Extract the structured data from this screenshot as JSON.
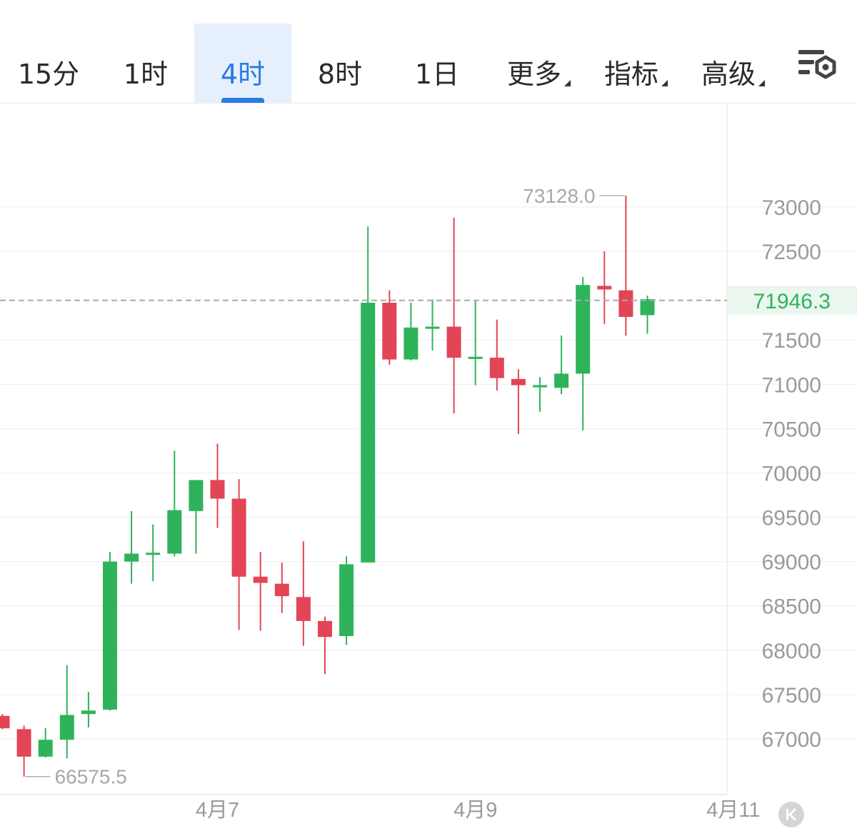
{
  "toolbar": {
    "tabs": [
      {
        "label": "15分",
        "active": false
      },
      {
        "label": "1时",
        "active": false
      },
      {
        "label": "4时",
        "active": true
      },
      {
        "label": "8时",
        "active": false
      },
      {
        "label": "1日",
        "active": false
      }
    ],
    "more_label": "更多",
    "indicators_label": "指标",
    "advanced_label": "高级",
    "settings_icon": "chart-settings-icon"
  },
  "chart_data": {
    "type": "candlestick",
    "y_ticks": [
      "73000",
      "72500",
      "71500",
      "71000",
      "70500",
      "70000",
      "69500",
      "69000",
      "68500",
      "68000",
      "67500",
      "67000"
    ],
    "y_tick_values": [
      73000,
      72500,
      71500,
      71000,
      70500,
      70000,
      69500,
      69000,
      68500,
      68000,
      67500,
      67000
    ],
    "current_price": "71946.3",
    "current_price_value": 71946.3,
    "high_label": "73128.0",
    "high_value": 73128.0,
    "low_label": "66575.5",
    "low_value": 66575.5,
    "x_labels": [
      {
        "label": "4月7",
        "index": 10
      },
      {
        "label": "4月9",
        "index": 22
      },
      {
        "label": "4月11",
        "index": 34
      }
    ],
    "colors": {
      "up": "#2eb35a",
      "down": "#e24555",
      "grid": "#eeeeee",
      "axis_text": "#9a9a9a",
      "price_text": "#2eb35a"
    },
    "candles": [
      {
        "o": 67260,
        "h": 67280,
        "l": 67110,
        "c": 67120
      },
      {
        "o": 67110,
        "h": 67150,
        "l": 66575.5,
        "c": 66800
      },
      {
        "o": 66800,
        "h": 67120,
        "l": 66790,
        "c": 66990
      },
      {
        "o": 66990,
        "h": 67830,
        "l": 66780,
        "c": 67270
      },
      {
        "o": 67280,
        "h": 67530,
        "l": 67130,
        "c": 67320
      },
      {
        "o": 67330,
        "h": 69110,
        "l": 67320,
        "c": 69000
      },
      {
        "o": 69000,
        "h": 69570,
        "l": 68750,
        "c": 69090
      },
      {
        "o": 69100,
        "h": 69420,
        "l": 68780,
        "c": 69100
      },
      {
        "o": 69090,
        "h": 70250,
        "l": 69060,
        "c": 69580
      },
      {
        "o": 69570,
        "h": 69920,
        "l": 69090,
        "c": 69920
      },
      {
        "o": 69920,
        "h": 70330,
        "l": 69380,
        "c": 69710
      },
      {
        "o": 69710,
        "h": 69930,
        "l": 68230,
        "c": 68830
      },
      {
        "o": 68830,
        "h": 69110,
        "l": 68220,
        "c": 68760
      },
      {
        "o": 68750,
        "h": 68990,
        "l": 68420,
        "c": 68610
      },
      {
        "o": 68600,
        "h": 69230,
        "l": 68050,
        "c": 68330
      },
      {
        "o": 68330,
        "h": 68380,
        "l": 67730,
        "c": 68150
      },
      {
        "o": 68160,
        "h": 69060,
        "l": 68060,
        "c": 68970
      },
      {
        "o": 68990,
        "h": 72780,
        "l": 68990,
        "c": 71920
      },
      {
        "o": 71920,
        "h": 72060,
        "l": 71220,
        "c": 71280
      },
      {
        "o": 71280,
        "h": 71920,
        "l": 71270,
        "c": 71640
      },
      {
        "o": 71640,
        "h": 71960,
        "l": 71380,
        "c": 71650
      },
      {
        "o": 71650,
        "h": 72880,
        "l": 70670,
        "c": 71300
      },
      {
        "o": 71300,
        "h": 71940,
        "l": 70990,
        "c": 71310
      },
      {
        "o": 71300,
        "h": 71730,
        "l": 70930,
        "c": 71070
      },
      {
        "o": 71060,
        "h": 71170,
        "l": 70440,
        "c": 70990
      },
      {
        "o": 70990,
        "h": 71080,
        "l": 70690,
        "c": 70990
      },
      {
        "o": 70960,
        "h": 71550,
        "l": 70890,
        "c": 71120
      },
      {
        "o": 71120,
        "h": 72210,
        "l": 70480,
        "c": 72120
      },
      {
        "o": 72110,
        "h": 72500,
        "l": 71680,
        "c": 72070
      },
      {
        "o": 72060,
        "h": 73128.0,
        "l": 71550,
        "c": 71760
      },
      {
        "o": 71780,
        "h": 72000,
        "l": 71570,
        "c": 71960
      }
    ]
  }
}
